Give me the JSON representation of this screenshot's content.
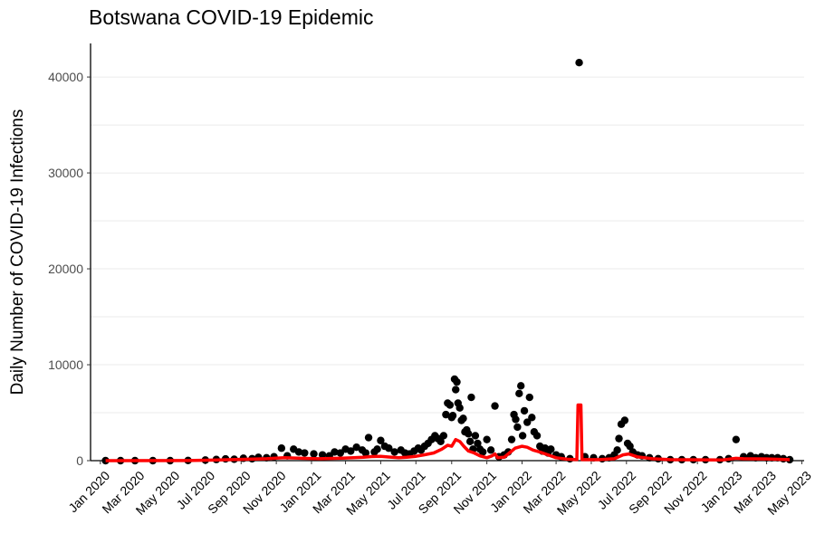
{
  "chart_data": {
    "type": "scatter",
    "title": "Botswana COVID-19 Epidemic",
    "xlabel": "",
    "ylabel": "Daily Number of COVID-19 Infections",
    "x_axis_type": "date",
    "xlim": [
      "2019-12-15",
      "2023-05-05"
    ],
    "ylim": [
      0,
      43500
    ],
    "grid": "horizontal major and minor",
    "yticks": [
      0,
      10000,
      20000,
      30000,
      40000
    ],
    "ytick_labels": [
      "0",
      "10000",
      "20000",
      "30000",
      "40000"
    ],
    "xtick_dates": [
      "2020-01-01",
      "2020-03-01",
      "2020-05-01",
      "2020-07-01",
      "2020-09-01",
      "2020-11-01",
      "2021-01-01",
      "2021-03-01",
      "2021-05-01",
      "2021-07-01",
      "2021-09-01",
      "2021-11-01",
      "2022-01-01",
      "2022-03-01",
      "2022-05-01",
      "2022-07-01",
      "2022-09-01",
      "2022-11-01",
      "2023-01-01",
      "2023-03-01",
      "2023-05-01"
    ],
    "xtick_labels": [
      "Jan 2020",
      "Mar 2020",
      "May 2020",
      "Jul 2020",
      "Sep 2020",
      "Nov 2020",
      "Jan 2021",
      "Mar 2021",
      "May 2021",
      "Jul 2021",
      "Sep 2021",
      "Nov 2021",
      "Jan 2022",
      "Mar 2022",
      "May 2022",
      "Jul 2022",
      "Sep 2022",
      "Nov 2022",
      "Jan 2023",
      "Mar 2023",
      "May 2023"
    ],
    "series": [
      {
        "type": "scatter",
        "color": "#000000",
        "points": [
          [
            "2020-01-10",
            0
          ],
          [
            "2020-02-05",
            0
          ],
          [
            "2020-03-01",
            0
          ],
          [
            "2020-04-01",
            0
          ],
          [
            "2020-05-01",
            0
          ],
          [
            "2020-06-01",
            20
          ],
          [
            "2020-07-01",
            60
          ],
          [
            "2020-07-20",
            120
          ],
          [
            "2020-08-05",
            180
          ],
          [
            "2020-08-20",
            150
          ],
          [
            "2020-09-05",
            250
          ],
          [
            "2020-09-20",
            200
          ],
          [
            "2020-10-01",
            350
          ],
          [
            "2020-10-15",
            300
          ],
          [
            "2020-10-28",
            400
          ],
          [
            "2020-11-10",
            1300
          ],
          [
            "2020-11-20",
            500
          ],
          [
            "2020-12-01",
            1200
          ],
          [
            "2020-12-10",
            900
          ],
          [
            "2020-12-20",
            800
          ],
          [
            "2021-01-05",
            700
          ],
          [
            "2021-01-20",
            600
          ],
          [
            "2021-02-01",
            500
          ],
          [
            "2021-02-10",
            900
          ],
          [
            "2021-02-20",
            800
          ],
          [
            "2021-03-01",
            1200
          ],
          [
            "2021-03-10",
            1000
          ],
          [
            "2021-03-20",
            1400
          ],
          [
            "2021-03-30",
            1100
          ],
          [
            "2021-04-05",
            800
          ],
          [
            "2021-04-10",
            2400
          ],
          [
            "2021-04-20",
            900
          ],
          [
            "2021-04-25",
            1200
          ],
          [
            "2021-05-01",
            2100
          ],
          [
            "2021-05-08",
            1500
          ],
          [
            "2021-05-15",
            1300
          ],
          [
            "2021-05-25",
            900
          ],
          [
            "2021-06-05",
            1100
          ],
          [
            "2021-06-12",
            800
          ],
          [
            "2021-06-20",
            700
          ],
          [
            "2021-06-28",
            1000
          ],
          [
            "2021-07-05",
            1300
          ],
          [
            "2021-07-10",
            1100
          ],
          [
            "2021-07-16",
            1500
          ],
          [
            "2021-07-22",
            1800
          ],
          [
            "2021-07-28",
            2200
          ],
          [
            "2021-08-03",
            2600
          ],
          [
            "2021-08-08",
            2300
          ],
          [
            "2021-08-13",
            2000
          ],
          [
            "2021-08-18",
            2600
          ],
          [
            "2021-08-22",
            4800
          ],
          [
            "2021-08-25",
            6000
          ],
          [
            "2021-08-29",
            5800
          ],
          [
            "2021-09-01",
            4500
          ],
          [
            "2021-09-03",
            4700
          ],
          [
            "2021-09-06",
            8500
          ],
          [
            "2021-09-08",
            7400
          ],
          [
            "2021-09-10",
            8200
          ],
          [
            "2021-09-12",
            6000
          ],
          [
            "2021-09-15",
            5500
          ],
          [
            "2021-09-18",
            4200
          ],
          [
            "2021-09-21",
            4400
          ],
          [
            "2021-09-24",
            3000
          ],
          [
            "2021-09-27",
            3200
          ],
          [
            "2021-09-30",
            2800
          ],
          [
            "2021-10-03",
            2000
          ],
          [
            "2021-10-05",
            6600
          ],
          [
            "2021-10-08",
            1200
          ],
          [
            "2021-10-12",
            2600
          ],
          [
            "2021-10-16",
            1800
          ],
          [
            "2021-10-20",
            1200
          ],
          [
            "2021-10-25",
            900
          ],
          [
            "2021-11-01",
            2200
          ],
          [
            "2021-11-08",
            1100
          ],
          [
            "2021-11-15",
            5700
          ],
          [
            "2021-11-22",
            400
          ],
          [
            "2021-12-01",
            600
          ],
          [
            "2021-12-08",
            900
          ],
          [
            "2021-12-14",
            2200
          ],
          [
            "2021-12-18",
            4800
          ],
          [
            "2021-12-21",
            4300
          ],
          [
            "2021-12-24",
            3500
          ],
          [
            "2021-12-27",
            7000
          ],
          [
            "2021-12-30",
            7800
          ],
          [
            "2022-01-02",
            2600
          ],
          [
            "2022-01-05",
            5200
          ],
          [
            "2022-01-10",
            4000
          ],
          [
            "2022-01-14",
            6600
          ],
          [
            "2022-01-18",
            4500
          ],
          [
            "2022-01-22",
            3000
          ],
          [
            "2022-01-27",
            2600
          ],
          [
            "2022-02-01",
            1500
          ],
          [
            "2022-02-05",
            1000
          ],
          [
            "2022-02-10",
            1300
          ],
          [
            "2022-02-15",
            800
          ],
          [
            "2022-02-20",
            1200
          ],
          [
            "2022-03-01",
            600
          ],
          [
            "2022-03-10",
            400
          ],
          [
            "2022-03-25",
            200
          ],
          [
            "2022-04-10",
            41500
          ],
          [
            "2022-04-20",
            400
          ],
          [
            "2022-05-05",
            300
          ],
          [
            "2022-05-20",
            200
          ],
          [
            "2022-06-01",
            300
          ],
          [
            "2022-06-10",
            600
          ],
          [
            "2022-06-15",
            1100
          ],
          [
            "2022-06-18",
            2300
          ],
          [
            "2022-06-22",
            3800
          ],
          [
            "2022-06-28",
            4200
          ],
          [
            "2022-07-03",
            1800
          ],
          [
            "2022-07-07",
            1500
          ],
          [
            "2022-07-12",
            900
          ],
          [
            "2022-07-20",
            600
          ],
          [
            "2022-07-28",
            500
          ],
          [
            "2022-08-10",
            300
          ],
          [
            "2022-08-25",
            200
          ],
          [
            "2022-09-15",
            100
          ],
          [
            "2022-10-05",
            100
          ],
          [
            "2022-10-25",
            100
          ],
          [
            "2022-11-15",
            100
          ],
          [
            "2022-12-10",
            100
          ],
          [
            "2022-12-25",
            200
          ],
          [
            "2023-01-07",
            2200
          ],
          [
            "2023-01-20",
            400
          ],
          [
            "2023-02-01",
            500
          ],
          [
            "2023-02-10",
            300
          ],
          [
            "2023-02-20",
            400
          ],
          [
            "2023-03-01",
            300
          ],
          [
            "2023-03-10",
            300
          ],
          [
            "2023-03-20",
            300
          ],
          [
            "2023-03-30",
            200
          ],
          [
            "2023-04-10",
            100
          ]
        ]
      },
      {
        "type": "line",
        "color": "#ff0000",
        "points": [
          [
            "2020-01-10",
            0
          ],
          [
            "2020-06-01",
            10
          ],
          [
            "2020-07-15",
            60
          ],
          [
            "2020-08-15",
            100
          ],
          [
            "2020-09-15",
            150
          ],
          [
            "2020-10-15",
            200
          ],
          [
            "2020-11-15",
            300
          ],
          [
            "2020-12-15",
            250
          ],
          [
            "2021-01-15",
            200
          ],
          [
            "2021-02-15",
            250
          ],
          [
            "2021-03-15",
            300
          ],
          [
            "2021-04-01",
            350
          ],
          [
            "2021-04-15",
            420
          ],
          [
            "2021-05-01",
            450
          ],
          [
            "2021-05-15",
            380
          ],
          [
            "2021-06-01",
            300
          ],
          [
            "2021-06-15",
            350
          ],
          [
            "2021-07-01",
            450
          ],
          [
            "2021-07-15",
            600
          ],
          [
            "2021-08-01",
            800
          ],
          [
            "2021-08-15",
            1200
          ],
          [
            "2021-08-25",
            1600
          ],
          [
            "2021-09-01",
            1500
          ],
          [
            "2021-09-08",
            2200
          ],
          [
            "2021-09-15",
            2000
          ],
          [
            "2021-09-22",
            1500
          ],
          [
            "2021-09-30",
            1000
          ],
          [
            "2021-10-10",
            800
          ],
          [
            "2021-10-20",
            500
          ],
          [
            "2021-11-01",
            300
          ],
          [
            "2021-11-10",
            500
          ],
          [
            "2021-11-15",
            700
          ],
          [
            "2021-11-20",
            300
          ],
          [
            "2021-12-01",
            350
          ],
          [
            "2021-12-10",
            800
          ],
          [
            "2021-12-20",
            1300
          ],
          [
            "2022-01-01",
            1500
          ],
          [
            "2022-01-10",
            1400
          ],
          [
            "2022-01-20",
            1100
          ],
          [
            "2022-02-01",
            900
          ],
          [
            "2022-02-15",
            600
          ],
          [
            "2022-03-01",
            300
          ],
          [
            "2022-03-20",
            150
          ],
          [
            "2022-04-06",
            100
          ],
          [
            "2022-04-08",
            5800
          ],
          [
            "2022-04-13",
            5800
          ],
          [
            "2022-04-15",
            100
          ],
          [
            "2022-05-15",
            100
          ],
          [
            "2022-06-10",
            200
          ],
          [
            "2022-06-25",
            600
          ],
          [
            "2022-07-05",
            700
          ],
          [
            "2022-07-20",
            400
          ],
          [
            "2022-08-15",
            200
          ],
          [
            "2022-09-15",
            100
          ],
          [
            "2022-12-15",
            80
          ],
          [
            "2023-01-07",
            250
          ],
          [
            "2023-01-20",
            200
          ],
          [
            "2023-03-01",
            180
          ],
          [
            "2023-04-10",
            100
          ]
        ]
      }
    ]
  }
}
